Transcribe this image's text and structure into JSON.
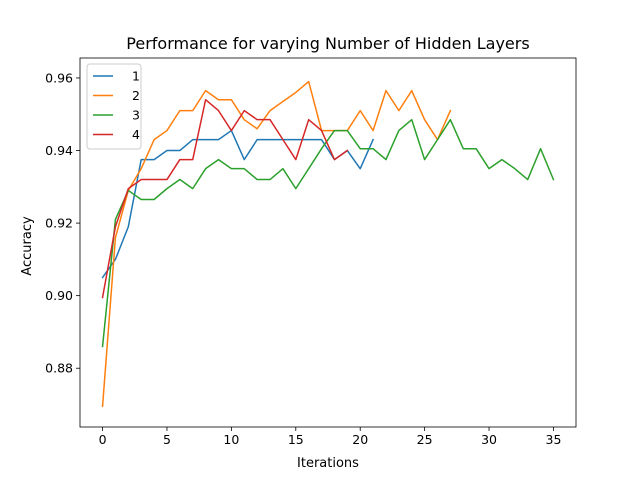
{
  "chart_data": {
    "type": "line",
    "title": "Performance for varying Number of Hidden Layers",
    "xlabel": "Iterations",
    "ylabel": "Accuracy",
    "xlim": [
      -1.75,
      36.75
    ],
    "ylim": [
      0.8638,
      0.9655
    ],
    "xticks": [
      0,
      5,
      10,
      15,
      20,
      25,
      30,
      35
    ],
    "yticks": [
      0.88,
      0.9,
      0.92,
      0.94,
      0.96
    ],
    "ytick_labels": [
      "0.88",
      "0.90",
      "0.92",
      "0.94",
      "0.96"
    ],
    "grid": false,
    "legend_position": "top-left",
    "series": [
      {
        "name": "1",
        "color": "#1f77b4",
        "x": [
          0,
          1,
          2,
          3,
          4,
          5,
          6,
          7,
          8,
          9,
          10,
          11,
          12,
          13,
          14,
          15,
          16,
          17,
          18,
          19,
          20,
          21
        ],
        "y": [
          0.905,
          0.91,
          0.919,
          0.9375,
          0.9375,
          0.94,
          0.94,
          0.943,
          0.943,
          0.943,
          0.9455,
          0.9375,
          0.943,
          0.943,
          0.943,
          0.943,
          0.943,
          0.943,
          0.9375,
          0.94,
          0.935,
          0.943
        ]
      },
      {
        "name": "2",
        "color": "#ff7f0e",
        "x": [
          0,
          1,
          2,
          3,
          4,
          5,
          6,
          7,
          8,
          9,
          10,
          11,
          12,
          13,
          14,
          15,
          16,
          17,
          18,
          19,
          20,
          21,
          22,
          23,
          24,
          25,
          26,
          27
        ],
        "y": [
          0.8695,
          0.916,
          0.929,
          0.935,
          0.943,
          0.9455,
          0.951,
          0.951,
          0.9565,
          0.954,
          0.954,
          0.9485,
          0.946,
          0.951,
          0.9535,
          0.956,
          0.959,
          0.9455,
          0.9455,
          0.9455,
          0.951,
          0.9455,
          0.9565,
          0.951,
          0.9565,
          0.9485,
          0.943,
          0.951
        ]
      },
      {
        "name": "3",
        "color": "#2ca02c",
        "x": [
          0,
          1,
          2,
          3,
          4,
          5,
          6,
          7,
          8,
          9,
          10,
          11,
          12,
          13,
          14,
          15,
          16,
          17,
          18,
          19,
          20,
          21,
          22,
          23,
          24,
          25,
          26,
          27,
          28,
          29,
          30,
          31,
          32,
          33,
          34,
          35
        ],
        "y": [
          0.886,
          0.921,
          0.929,
          0.9265,
          0.9265,
          0.9295,
          0.932,
          0.9295,
          0.935,
          0.9375,
          0.935,
          0.935,
          0.932,
          0.932,
          0.935,
          0.9295,
          0.935,
          0.9405,
          0.9455,
          0.9455,
          0.9405,
          0.9405,
          0.9375,
          0.9455,
          0.9485,
          0.9375,
          0.943,
          0.9485,
          0.9405,
          0.9405,
          0.935,
          0.9375,
          0.935,
          0.932,
          0.9405,
          0.932
        ]
      },
      {
        "name": "4",
        "color": "#d62728",
        "x": [
          0,
          1,
          2,
          3,
          4,
          5,
          6,
          7,
          8,
          9,
          10,
          11,
          12,
          13,
          14,
          15,
          16,
          17,
          18,
          19
        ],
        "y": [
          0.8995,
          0.919,
          0.9295,
          0.932,
          0.932,
          0.932,
          0.9375,
          0.9375,
          0.954,
          0.951,
          0.9455,
          0.951,
          0.9485,
          0.9485,
          0.943,
          0.9375,
          0.9485,
          0.9455,
          0.9375,
          0.94
        ]
      }
    ]
  }
}
